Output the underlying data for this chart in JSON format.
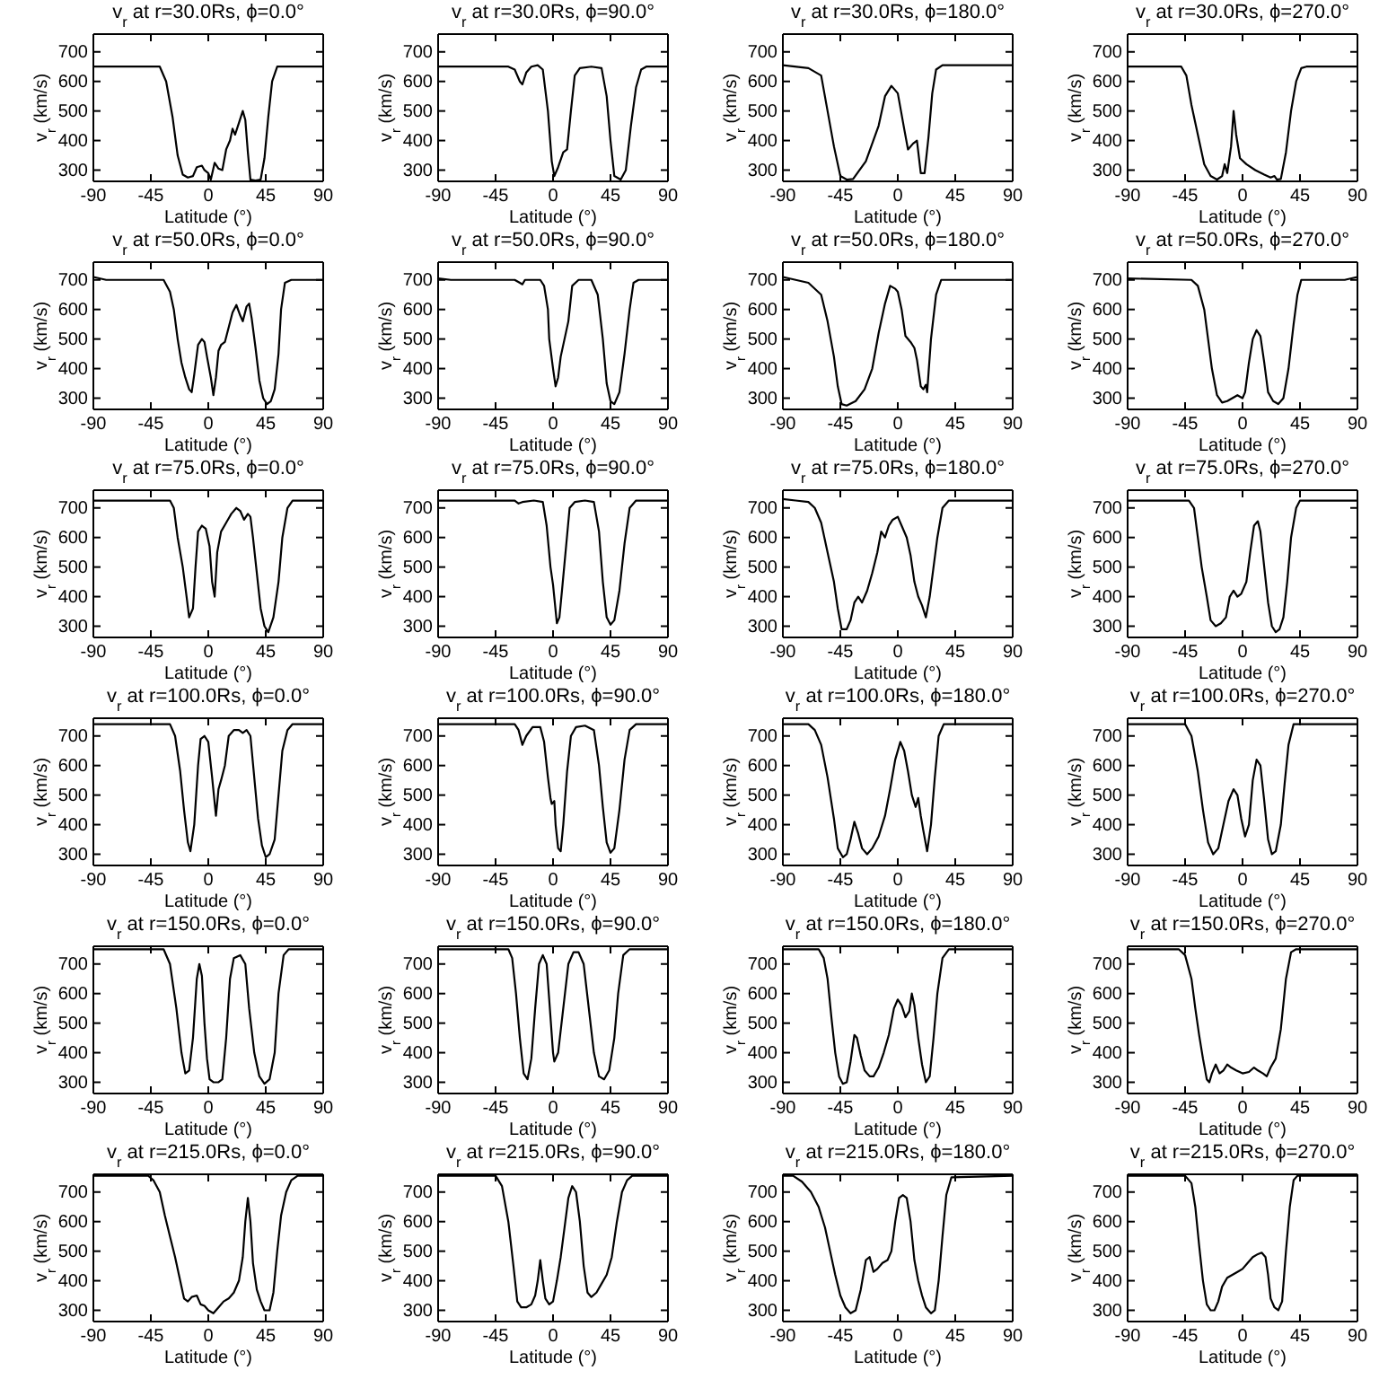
{
  "chart_data": [
    {
      "type": "line",
      "title": "v$_{r}$ at r=30.0Rs, ϕ=0.0°",
      "xlabel": "Latitude (°)",
      "ylabel": "v$_{r}$ (km/s)",
      "xlim": [
        -90,
        90
      ],
      "xticks": [
        -90,
        -45,
        0,
        45,
        90
      ],
      "ylim": [
        262,
        760
      ],
      "yticks": [
        300,
        400,
        500,
        600,
        700
      ],
      "series": [
        {
          "color": "#000000",
          "x": [
            -90,
            -38,
            -33,
            -28,
            -24,
            -20,
            -16,
            -12,
            -9,
            -5,
            -3,
            0,
            2,
            5,
            8,
            11,
            14,
            17,
            19,
            21,
            24,
            27,
            29,
            31,
            33,
            37,
            41,
            44,
            47,
            50,
            54,
            90
          ],
          "values": [
            650,
            650,
            600,
            480,
            350,
            285,
            275,
            280,
            310,
            315,
            300,
            290,
            268,
            325,
            305,
            300,
            370,
            400,
            440,
            420,
            460,
            500,
            470,
            360,
            268,
            265,
            268,
            340,
            480,
            600,
            650,
            650
          ]
        }
      ]
    },
    {
      "type": "line",
      "title": "v$_{r}$ at r=30.0Rs, ϕ=90.0°",
      "xlabel": "Latitude (°)",
      "ylabel": "v$_{r}$ (km/s)",
      "xlim": [
        -90,
        90
      ],
      "xticks": [
        -90,
        -45,
        0,
        45,
        90
      ],
      "ylim": [
        262,
        760
      ],
      "yticks": [
        300,
        400,
        500,
        600,
        700
      ],
      "series": [
        {
          "color": "#000000",
          "x": [
            -90,
            -35,
            -30,
            -26,
            -24,
            -21,
            -17,
            -12,
            -8,
            -4,
            -1,
            1,
            4,
            8,
            11,
            14,
            17,
            21,
            30,
            38,
            42,
            45,
            48,
            53,
            57,
            61,
            65,
            69,
            73,
            90
          ],
          "values": [
            650,
            650,
            640,
            600,
            590,
            630,
            650,
            655,
            640,
            500,
            330,
            280,
            310,
            360,
            370,
            500,
            620,
            645,
            650,
            645,
            550,
            400,
            280,
            268,
            300,
            450,
            580,
            640,
            650,
            650
          ]
        }
      ]
    },
    {
      "type": "line",
      "title": "v$_{r}$ at r=30.0Rs, ϕ=180.0°",
      "xlabel": "Latitude (°)",
      "ylabel": "v$_{r}$ (km/s)",
      "xlim": [
        -90,
        90
      ],
      "xticks": [
        -90,
        -45,
        0,
        45,
        90
      ],
      "ylim": [
        262,
        760
      ],
      "yticks": [
        300,
        400,
        500,
        600,
        700
      ],
      "series": [
        {
          "color": "#000000",
          "x": [
            -90,
            -70,
            -60,
            -55,
            -50,
            -45,
            -40,
            -35,
            -25,
            -15,
            -10,
            -5,
            0,
            5,
            8,
            12,
            15,
            18,
            21,
            24,
            27,
            30,
            35,
            90
          ],
          "values": [
            655,
            645,
            620,
            500,
            380,
            280,
            268,
            270,
            330,
            450,
            550,
            585,
            560,
            440,
            370,
            390,
            400,
            290,
            290,
            410,
            560,
            640,
            655,
            655
          ]
        }
      ]
    },
    {
      "type": "line",
      "title": "v$_{r}$ at r=30.0Rs, ϕ=270.0°",
      "xlabel": "Latitude (°)",
      "ylabel": "v$_{r}$ (km/s)",
      "xlim": [
        -90,
        90
      ],
      "xticks": [
        -90,
        -45,
        0,
        45,
        90
      ],
      "ylim": [
        262,
        760
      ],
      "yticks": [
        300,
        400,
        500,
        600,
        700
      ],
      "series": [
        {
          "color": "#000000",
          "x": [
            -90,
            -48,
            -44,
            -40,
            -35,
            -30,
            -25,
            -20,
            -16,
            -14,
            -12,
            -9,
            -7,
            -5,
            -2,
            3,
            10,
            17,
            22,
            25,
            27,
            30,
            34,
            38,
            42,
            46,
            50,
            90
          ],
          "values": [
            650,
            650,
            620,
            520,
            420,
            320,
            280,
            268,
            280,
            320,
            290,
            380,
            500,
            420,
            340,
            320,
            300,
            285,
            275,
            280,
            268,
            270,
            360,
            500,
            600,
            645,
            650,
            650
          ]
        }
      ]
    },
    {
      "type": "line",
      "title": "v$_{r}$ at r=50.0Rs, ϕ=0.0°",
      "xlabel": "Latitude (°)",
      "ylabel": "v$_{r}$ (km/s)",
      "xlim": [
        -90,
        90
      ],
      "xticks": [
        -90,
        -45,
        0,
        45,
        90
      ],
      "ylim": [
        262,
        760
      ],
      "yticks": [
        300,
        400,
        500,
        600,
        700
      ],
      "series": [
        {
          "color": "#000000",
          "x": [
            -90,
            -80,
            -35,
            -30,
            -27,
            -24,
            -21,
            -18,
            -15,
            -13,
            -11,
            -8,
            -5,
            -3,
            -1,
            2,
            4,
            6,
            8,
            10,
            13,
            16,
            19,
            22,
            25,
            27,
            30,
            32,
            34,
            37,
            40,
            43,
            46,
            49,
            52,
            55,
            57,
            60,
            65,
            90
          ],
          "values": [
            710,
            700,
            700,
            660,
            600,
            500,
            420,
            370,
            330,
            320,
            380,
            480,
            500,
            490,
            440,
            370,
            310,
            370,
            460,
            480,
            490,
            540,
            590,
            615,
            580,
            560,
            610,
            620,
            570,
            470,
            360,
            300,
            280,
            290,
            330,
            450,
            600,
            690,
            700,
            700
          ]
        }
      ]
    },
    {
      "type": "line",
      "title": "v$_{r}$ at r=50.0Rs, ϕ=90.0°",
      "xlabel": "Latitude (°)",
      "ylabel": "v$_{r}$ (km/s)",
      "xlim": [
        -90,
        90
      ],
      "xticks": [
        -90,
        -45,
        0,
        45,
        90
      ],
      "ylim": [
        262,
        760
      ],
      "yticks": [
        300,
        400,
        500,
        600,
        700
      ],
      "series": [
        {
          "color": "#000000",
          "x": [
            -90,
            -80,
            -30,
            -26,
            -24,
            -22,
            -10,
            -7,
            -4,
            -3,
            0,
            2,
            4,
            6,
            9,
            12,
            15,
            20,
            30,
            35,
            39,
            42,
            45,
            48,
            52,
            56,
            60,
            63,
            67,
            90
          ],
          "values": [
            705,
            700,
            700,
            690,
            685,
            700,
            700,
            680,
            600,
            500,
            400,
            340,
            370,
            440,
            500,
            560,
            680,
            700,
            700,
            650,
            500,
            350,
            290,
            280,
            320,
            450,
            600,
            690,
            700,
            700
          ]
        }
      ]
    },
    {
      "type": "line",
      "title": "v$_{r}$ at r=50.0Rs, ϕ=180.0°",
      "xlabel": "Latitude (°)",
      "ylabel": "v$_{r}$ (km/s)",
      "xlim": [
        -90,
        90
      ],
      "xticks": [
        -90,
        -45,
        0,
        45,
        90
      ],
      "ylim": [
        262,
        760
      ],
      "yticks": [
        300,
        400,
        500,
        600,
        700
      ],
      "series": [
        {
          "color": "#000000",
          "x": [
            -90,
            -80,
            -70,
            -60,
            -55,
            -50,
            -47,
            -44,
            -40,
            -33,
            -26,
            -20,
            -15,
            -10,
            -6,
            -2,
            0,
            3,
            6,
            10,
            13,
            15,
            18,
            20,
            22,
            23,
            26,
            30,
            34,
            90
          ],
          "values": [
            710,
            700,
            690,
            650,
            560,
            440,
            340,
            280,
            275,
            290,
            330,
            400,
            520,
            620,
            680,
            670,
            660,
            600,
            510,
            490,
            470,
            430,
            340,
            330,
            345,
            320,
            500,
            650,
            700,
            700
          ]
        }
      ]
    },
    {
      "type": "line",
      "title": "v$_{r}$ at r=50.0Rs, ϕ=270.0°",
      "xlabel": "Latitude (°)",
      "ylabel": "v$_{r}$ (km/s)",
      "xlim": [
        -90,
        90
      ],
      "xticks": [
        -90,
        -45,
        0,
        45,
        90
      ],
      "ylim": [
        262,
        760
      ],
      "yticks": [
        300,
        400,
        500,
        600,
        700
      ],
      "series": [
        {
          "color": "#000000",
          "x": [
            -90,
            -40,
            -35,
            -30,
            -27,
            -24,
            -20,
            -16,
            -12,
            -8,
            -4,
            0,
            2,
            5,
            8,
            11,
            14,
            17,
            20,
            24,
            28,
            32,
            36,
            40,
            43,
            46,
            80,
            90
          ],
          "values": [
            705,
            700,
            680,
            600,
            500,
            400,
            310,
            285,
            290,
            300,
            310,
            300,
            320,
            420,
            500,
            530,
            510,
            420,
            320,
            290,
            280,
            300,
            400,
            550,
            650,
            700,
            700,
            710
          ]
        }
      ]
    },
    {
      "type": "line",
      "title": "v$_{r}$ at r=75.0Rs, ϕ=0.0°",
      "xlabel": "Latitude (°)",
      "ylabel": "v$_{r}$ (km/s)",
      "xlim": [
        -90,
        90
      ],
      "xticks": [
        -90,
        -45,
        0,
        45,
        90
      ],
      "ylim": [
        262,
        760
      ],
      "yticks": [
        300,
        400,
        500,
        600,
        700
      ],
      "series": [
        {
          "color": "#000000",
          "x": [
            -90,
            -30,
            -27,
            -24,
            -20,
            -17,
            -15,
            -12,
            -10,
            -8,
            -5,
            -2,
            1,
            3,
            5,
            7,
            10,
            14,
            18,
            22,
            25,
            28,
            31,
            33,
            35,
            38,
            41,
            44,
            47,
            51,
            55,
            58,
            62,
            66,
            90
          ],
          "values": [
            725,
            725,
            700,
            600,
            500,
            400,
            330,
            360,
            500,
            620,
            640,
            630,
            570,
            450,
            400,
            550,
            620,
            650,
            680,
            700,
            690,
            660,
            680,
            670,
            600,
            480,
            360,
            300,
            280,
            330,
            450,
            600,
            700,
            725,
            725
          ]
        }
      ]
    },
    {
      "type": "line",
      "title": "v$_{r}$ at r=75.0Rs, ϕ=90.0°",
      "xlabel": "Latitude (°)",
      "ylabel": "v$_{r}$ (km/s)",
      "xlim": [
        -90,
        90
      ],
      "xticks": [
        -90,
        -45,
        0,
        45,
        90
      ],
      "ylim": [
        262,
        760
      ],
      "yticks": [
        300,
        400,
        500,
        600,
        700
      ],
      "series": [
        {
          "color": "#000000",
          "x": [
            -90,
            -30,
            -27,
            -24,
            -15,
            -8,
            -5,
            -2,
            0,
            3,
            5,
            7,
            10,
            13,
            17,
            25,
            32,
            36,
            39,
            42,
            45,
            48,
            52,
            56,
            60,
            65,
            90
          ],
          "values": [
            725,
            725,
            715,
            720,
            725,
            720,
            640,
            500,
            440,
            310,
            330,
            420,
            560,
            700,
            720,
            725,
            720,
            620,
            450,
            330,
            305,
            320,
            420,
            580,
            700,
            725,
            725
          ]
        }
      ]
    },
    {
      "type": "line",
      "title": "v$_{r}$ at r=75.0Rs, ϕ=180.0°",
      "xlabel": "Latitude (°)",
      "ylabel": "v$_{r}$ (km/s)",
      "xlim": [
        -90,
        90
      ],
      "xticks": [
        -90,
        -45,
        0,
        45,
        90
      ],
      "ylim": [
        262,
        760
      ],
      "yticks": [
        300,
        400,
        500,
        600,
        700
      ],
      "series": [
        {
          "color": "#000000",
          "x": [
            -90,
            -80,
            -70,
            -65,
            -60,
            -55,
            -50,
            -47,
            -44,
            -40,
            -37,
            -34,
            -31,
            -28,
            -24,
            -20,
            -16,
            -13,
            -10,
            -7,
            -4,
            0,
            3,
            7,
            10,
            13,
            16,
            19,
            22,
            25,
            28,
            31,
            35,
            40,
            90
          ],
          "values": [
            730,
            725,
            720,
            700,
            650,
            550,
            450,
            360,
            290,
            290,
            320,
            380,
            400,
            380,
            420,
            480,
            550,
            620,
            600,
            640,
            660,
            670,
            640,
            600,
            540,
            450,
            400,
            370,
            330,
            400,
            500,
            600,
            700,
            725,
            725
          ]
        }
      ]
    },
    {
      "type": "line",
      "title": "v$_{r}$ at r=75.0Rs, ϕ=270.0°",
      "xlabel": "Latitude (°)",
      "ylabel": "v$_{r}$ (km/s)",
      "xlim": [
        -90,
        90
      ],
      "xticks": [
        -90,
        -45,
        0,
        45,
        90
      ],
      "ylim": [
        262,
        760
      ],
      "yticks": [
        300,
        400,
        500,
        600,
        700
      ],
      "series": [
        {
          "color": "#000000",
          "x": [
            -90,
            -42,
            -38,
            -35,
            -32,
            -28,
            -25,
            -21,
            -17,
            -13,
            -10,
            -7,
            -4,
            -1,
            3,
            6,
            9,
            12,
            14,
            17,
            20,
            23,
            26,
            29,
            32,
            35,
            38,
            42,
            45,
            90
          ],
          "values": [
            725,
            725,
            700,
            600,
            500,
            400,
            320,
            300,
            310,
            330,
            400,
            420,
            400,
            410,
            450,
            550,
            640,
            655,
            620,
            500,
            380,
            300,
            280,
            290,
            330,
            450,
            600,
            700,
            725,
            725
          ]
        }
      ]
    },
    {
      "type": "line",
      "title": "v$_{r}$ at r=100.0Rs, ϕ=0.0°",
      "xlabel": "Latitude (°)",
      "ylabel": "v$_{r}$ (km/s)",
      "xlim": [
        -90,
        90
      ],
      "xticks": [
        -90,
        -45,
        0,
        45,
        90
      ],
      "ylim": [
        262,
        760
      ],
      "yticks": [
        300,
        400,
        500,
        600,
        700
      ],
      "series": [
        {
          "color": "#000000",
          "x": [
            -90,
            -30,
            -26,
            -22,
            -19,
            -16,
            -14,
            -11,
            -8,
            -6,
            -3,
            0,
            3,
            6,
            8,
            10,
            13,
            16,
            20,
            24,
            27,
            30,
            33,
            36,
            39,
            42,
            45,
            48,
            52,
            55,
            58,
            62,
            66,
            90
          ],
          "values": [
            740,
            740,
            700,
            580,
            450,
            340,
            310,
            400,
            600,
            690,
            700,
            680,
            560,
            430,
            520,
            550,
            600,
            700,
            720,
            720,
            710,
            720,
            700,
            560,
            420,
            330,
            290,
            300,
            350,
            500,
            650,
            720,
            740,
            740
          ]
        }
      ]
    },
    {
      "type": "line",
      "title": "v$_{r}$ at r=100.0Rs, ϕ=90.0°",
      "xlabel": "Latitude (°)",
      "ylabel": "v$_{r}$ (km/s)",
      "xlim": [
        -90,
        90
      ],
      "xticks": [
        -90,
        -45,
        0,
        45,
        90
      ],
      "ylim": [
        262,
        760
      ],
      "yticks": [
        300,
        400,
        500,
        600,
        700
      ],
      "series": [
        {
          "color": "#000000",
          "x": [
            -90,
            -30,
            -27,
            -24,
            -21,
            -16,
            -10,
            -7,
            -4,
            -2,
            -1,
            1,
            2,
            4,
            6,
            8,
            11,
            14,
            18,
            25,
            32,
            36,
            39,
            42,
            45,
            48,
            52,
            56,
            60,
            65,
            90
          ],
          "values": [
            740,
            740,
            720,
            670,
            700,
            730,
            730,
            680,
            560,
            490,
            470,
            480,
            400,
            320,
            310,
            400,
            580,
            700,
            730,
            735,
            720,
            600,
            460,
            340,
            305,
            320,
            450,
            620,
            720,
            740,
            740
          ]
        }
      ]
    },
    {
      "type": "line",
      "title": "v$_{r}$ at r=100.0Rs, ϕ=180.0°",
      "xlabel": "Latitude (°)",
      "ylabel": "v$_{r}$ (km/s)",
      "xlim": [
        -90,
        90
      ],
      "xticks": [
        -90,
        -45,
        0,
        45,
        90
      ],
      "ylim": [
        262,
        760
      ],
      "yticks": [
        300,
        400,
        500,
        600,
        700
      ],
      "series": [
        {
          "color": "#000000",
          "x": [
            -90,
            -70,
            -65,
            -60,
            -55,
            -50,
            -47,
            -43,
            -40,
            -37,
            -34,
            -31,
            -28,
            -24,
            -20,
            -15,
            -10,
            -6,
            -2,
            2,
            5,
            8,
            11,
            14,
            16,
            18,
            20,
            23,
            26,
            29,
            32,
            36,
            90
          ],
          "values": [
            740,
            740,
            720,
            670,
            560,
            420,
            320,
            290,
            300,
            350,
            410,
            370,
            320,
            300,
            320,
            360,
            430,
            520,
            620,
            680,
            650,
            580,
            500,
            460,
            490,
            430,
            380,
            310,
            400,
            560,
            700,
            740,
            740
          ]
        }
      ]
    },
    {
      "type": "line",
      "title": "v$_{r}$ at r=100.0Rs, ϕ=270.0°",
      "xlabel": "Latitude (°)",
      "ylabel": "v$_{r}$ (km/s)",
      "xlim": [
        -90,
        90
      ],
      "xticks": [
        -90,
        -45,
        0,
        45,
        90
      ],
      "ylim": [
        262,
        760
      ],
      "yticks": [
        300,
        400,
        500,
        600,
        700
      ],
      "series": [
        {
          "color": "#000000",
          "x": [
            -90,
            -45,
            -40,
            -35,
            -31,
            -27,
            -23,
            -19,
            -15,
            -11,
            -7,
            -4,
            -1,
            2,
            5,
            8,
            11,
            14,
            17,
            20,
            23,
            26,
            30,
            33,
            36,
            40,
            90
          ],
          "values": [
            740,
            740,
            700,
            580,
            450,
            340,
            300,
            320,
            400,
            480,
            520,
            500,
            420,
            360,
            400,
            550,
            620,
            600,
            480,
            350,
            300,
            310,
            400,
            540,
            670,
            740,
            740
          ]
        }
      ]
    },
    {
      "type": "line",
      "title": "v$_{r}$ at r=150.0Rs, ϕ=0.0°",
      "xlabel": "Latitude (°)",
      "ylabel": "v$_{r}$ (km/s)",
      "xlim": [
        -90,
        90
      ],
      "xticks": [
        -90,
        -45,
        0,
        45,
        90
      ],
      "ylim": [
        262,
        760
      ],
      "yticks": [
        300,
        400,
        500,
        600,
        700
      ],
      "series": [
        {
          "color": "#000000",
          "x": [
            -90,
            -35,
            -30,
            -25,
            -21,
            -18,
            -15,
            -12,
            -9,
            -7,
            -5,
            -3,
            -1,
            1,
            4,
            8,
            11,
            14,
            17,
            20,
            25,
            29,
            32,
            36,
            40,
            44,
            48,
            52,
            55,
            59,
            63,
            90
          ],
          "values": [
            750,
            750,
            700,
            550,
            400,
            330,
            340,
            450,
            650,
            700,
            660,
            500,
            380,
            310,
            300,
            300,
            310,
            450,
            650,
            720,
            730,
            700,
            550,
            400,
            320,
            295,
            310,
            400,
            600,
            730,
            750,
            750
          ]
        }
      ]
    },
    {
      "type": "line",
      "title": "v$_{r}$ at r=150.0Rs, ϕ=90.0°",
      "xlabel": "Latitude (°)",
      "ylabel": "v$_{r}$ (km/s)",
      "xlim": [
        -90,
        90
      ],
      "xticks": [
        -90,
        -45,
        0,
        45,
        90
      ],
      "ylim": [
        262,
        760
      ],
      "yticks": [
        300,
        400,
        500,
        600,
        700
      ],
      "series": [
        {
          "color": "#000000",
          "x": [
            -90,
            -35,
            -32,
            -29,
            -26,
            -23,
            -20,
            -17,
            -14,
            -11,
            -8,
            -5,
            -3,
            0,
            1,
            4,
            8,
            12,
            16,
            20,
            24,
            28,
            32,
            36,
            40,
            44,
            48,
            51,
            55,
            60,
            90
          ],
          "values": [
            750,
            750,
            720,
            600,
            450,
            330,
            310,
            380,
            550,
            700,
            730,
            700,
            580,
            400,
            370,
            400,
            550,
            700,
            740,
            740,
            700,
            550,
            400,
            320,
            310,
            340,
            450,
            600,
            730,
            750,
            750
          ]
        }
      ]
    },
    {
      "type": "line",
      "title": "v$_{r}$ at r=150.0Rs, ϕ=180.0°",
      "xlabel": "Latitude (°)",
      "ylabel": "v$_{r}$ (km/s)",
      "xlim": [
        -90,
        90
      ],
      "xticks": [
        -90,
        -45,
        0,
        45,
        90
      ],
      "ylim": [
        262,
        760
      ],
      "yticks": [
        300,
        400,
        500,
        600,
        700
      ],
      "series": [
        {
          "color": "#000000",
          "x": [
            -90,
            -62,
            -58,
            -55,
            -52,
            -49,
            -46,
            -43,
            -40,
            -37,
            -34,
            -32,
            -29,
            -26,
            -22,
            -19,
            -15,
            -11,
            -7,
            -3,
            0,
            3,
            6,
            9,
            11,
            13,
            16,
            19,
            22,
            25,
            28,
            31,
            35,
            40,
            90
          ],
          "values": [
            750,
            750,
            720,
            650,
            520,
            400,
            320,
            295,
            300,
            370,
            460,
            450,
            390,
            340,
            320,
            320,
            350,
            400,
            460,
            550,
            580,
            560,
            520,
            540,
            600,
            560,
            450,
            360,
            300,
            320,
            450,
            600,
            720,
            750,
            750
          ]
        }
      ]
    },
    {
      "type": "line",
      "title": "v$_{r}$ at r=150.0Rs, ϕ=270.0°",
      "xlabel": "Latitude (°)",
      "ylabel": "v$_{r}$ (km/s)",
      "xlim": [
        -90,
        90
      ],
      "xticks": [
        -90,
        -45,
        0,
        45,
        90
      ],
      "ylim": [
        262,
        760
      ],
      "yticks": [
        300,
        400,
        500,
        600,
        700
      ],
      "series": [
        {
          "color": "#000000",
          "x": [
            -90,
            -50,
            -45,
            -40,
            -37,
            -34,
            -31,
            -28,
            -26,
            -24,
            -21,
            -18,
            -15,
            -12,
            -9,
            -5,
            0,
            5,
            9,
            12,
            16,
            19,
            22,
            26,
            30,
            34,
            38,
            42,
            90
          ],
          "values": [
            750,
            750,
            730,
            650,
            550,
            460,
            380,
            310,
            300,
            330,
            360,
            330,
            340,
            360,
            350,
            340,
            330,
            335,
            350,
            340,
            330,
            320,
            350,
            380,
            480,
            650,
            740,
            750,
            750
          ]
        }
      ]
    },
    {
      "type": "line",
      "title": "v$_{r}$ at r=215.0Rs, ϕ=0.0°",
      "xlabel": "Latitude (°)",
      "ylabel": "v$_{r}$ (km/s)",
      "xlim": [
        -90,
        90
      ],
      "xticks": [
        -90,
        -45,
        0,
        45,
        90
      ],
      "ylim": [
        262,
        760
      ],
      "yticks": [
        300,
        400,
        500,
        600,
        700
      ],
      "series": [
        {
          "color": "#000000",
          "x": [
            -90,
            -47,
            -43,
            -38,
            -34,
            -30,
            -26,
            -22,
            -19,
            -16,
            -13,
            -9,
            -6,
            -3,
            0,
            4,
            8,
            12,
            16,
            20,
            24,
            27,
            29,
            31,
            33,
            35,
            38,
            41,
            44,
            48,
            51,
            54,
            57,
            61,
            65,
            70,
            90
          ],
          "values": [
            755,
            755,
            740,
            700,
            620,
            550,
            480,
            400,
            340,
            330,
            345,
            350,
            320,
            315,
            300,
            290,
            310,
            330,
            340,
            360,
            400,
            480,
            600,
            680,
            600,
            460,
            370,
            330,
            300,
            300,
            360,
            500,
            620,
            700,
            740,
            755,
            755
          ]
        }
      ]
    },
    {
      "type": "line",
      "title": "v$_{r}$ at r=215.0Rs, ϕ=90.0°",
      "xlabel": "Latitude (°)",
      "ylabel": "v$_{r}$ (km/s)",
      "xlim": [
        -90,
        90
      ],
      "xticks": [
        -90,
        -45,
        0,
        45,
        90
      ],
      "ylim": [
        262,
        760
      ],
      "yticks": [
        300,
        400,
        500,
        600,
        700
      ],
      "series": [
        {
          "color": "#000000",
          "x": [
            -90,
            -45,
            -40,
            -35,
            -31,
            -28,
            -25,
            -21,
            -17,
            -14,
            -12,
            -10,
            -8,
            -6,
            -3,
            0,
            3,
            6,
            9,
            12,
            15,
            18,
            21,
            24,
            27,
            30,
            34,
            38,
            42,
            46,
            50,
            54,
            58,
            62,
            90
          ],
          "values": [
            755,
            755,
            720,
            600,
            450,
            330,
            310,
            310,
            320,
            350,
            400,
            470,
            400,
            340,
            320,
            330,
            400,
            480,
            580,
            680,
            720,
            700,
            600,
            450,
            360,
            345,
            360,
            390,
            420,
            480,
            600,
            700,
            740,
            755,
            755
          ]
        }
      ]
    },
    {
      "type": "line",
      "title": "v$_{r}$ at r=215.0Rs, ϕ=180.0°",
      "xlabel": "Latitude (°)",
      "ylabel": "v$_{r}$ (km/s)",
      "xlim": [
        -90,
        90
      ],
      "xticks": [
        -90,
        -45,
        0,
        45,
        90
      ],
      "ylim": [
        262,
        760
      ],
      "yticks": [
        300,
        400,
        500,
        600,
        700
      ],
      "series": [
        {
          "color": "#000000",
          "x": [
            -90,
            -82,
            -75,
            -68,
            -62,
            -57,
            -53,
            -49,
            -45,
            -41,
            -37,
            -33,
            -29,
            -25,
            -22,
            -19,
            -16,
            -12,
            -8,
            -5,
            -2,
            1,
            4,
            7,
            10,
            13,
            16,
            19,
            22,
            26,
            29,
            32,
            35,
            38,
            42,
            90
          ],
          "values": [
            755,
            755,
            735,
            700,
            650,
            580,
            500,
            420,
            350,
            310,
            290,
            300,
            370,
            470,
            480,
            430,
            440,
            460,
            470,
            500,
            600,
            680,
            690,
            680,
            600,
            470,
            400,
            350,
            310,
            290,
            300,
            400,
            550,
            690,
            750,
            755
          ]
        }
      ]
    },
    {
      "type": "line",
      "title": "v$_{r}$ at r=215.0Rs, ϕ=270.0°",
      "xlabel": "Latitude (°)",
      "ylabel": "v$_{r}$ (km/s)",
      "xlim": [
        -90,
        90
      ],
      "xticks": [
        -90,
        -45,
        0,
        45,
        90
      ],
      "ylim": [
        262,
        760
      ],
      "yticks": [
        300,
        400,
        500,
        600,
        700
      ],
      "series": [
        {
          "color": "#000000",
          "x": [
            -90,
            -45,
            -40,
            -37,
            -34,
            -31,
            -28,
            -25,
            -22,
            -19,
            -16,
            -12,
            -8,
            -4,
            0,
            4,
            8,
            12,
            15,
            18,
            20,
            22,
            25,
            28,
            31,
            34,
            37,
            40,
            43,
            90
          ],
          "values": [
            755,
            755,
            730,
            650,
            520,
            400,
            320,
            300,
            300,
            330,
            380,
            410,
            420,
            430,
            440,
            460,
            480,
            490,
            495,
            480,
            420,
            340,
            310,
            300,
            330,
            500,
            650,
            740,
            755,
            755
          ]
        }
      ]
    }
  ]
}
